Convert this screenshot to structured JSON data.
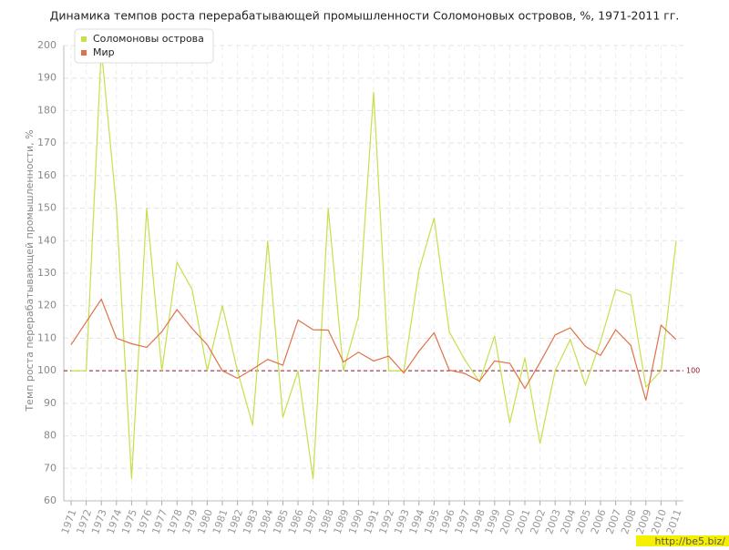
{
  "chart_data": {
    "type": "line",
    "title": "Динамика темпов роста перерабатывающей промышленности Соломоновых островов, %, 1971-2011 гг.",
    "y_label": "Темп роста перерабатывающей промышленности, %",
    "categories": [
      "1971",
      "1972",
      "1973",
      "1974",
      "1975",
      "1976",
      "1977",
      "1978",
      "1979",
      "1980",
      "1981",
      "1982",
      "1983",
      "1984",
      "1985",
      "1986",
      "1987",
      "1988",
      "1989",
      "1990",
      "1991",
      "1992",
      "1993",
      "1994",
      "1995",
      "1996",
      "1997",
      "1998",
      "1999",
      "2000",
      "2001",
      "2002",
      "2003",
      "2004",
      "2005",
      "2006",
      "2007",
      "2008",
      "2009",
      "2010",
      "2011"
    ],
    "series": [
      {
        "name": "Соломоновы острова",
        "color": "#c5e04a",
        "values": [
          100,
          100,
          199,
          150,
          66.7,
          150,
          100,
          133.3,
          125,
          100,
          120,
          100,
          83.3,
          140,
          85.7,
          100,
          66.7,
          150,
          100,
          116.7,
          185.7,
          100,
          100,
          130.8,
          147,
          112,
          103.6,
          96.6,
          110.7,
          83.9,
          104,
          77.6,
          100,
          109.6,
          95.6,
          109,
          125,
          123.3,
          95,
          100,
          140
        ]
      },
      {
        "name": "Мир",
        "color": "#e0714a",
        "values": [
          108,
          115,
          122,
          110,
          108.3,
          107.2,
          112,
          118.8,
          113,
          108,
          100,
          97.7,
          100.5,
          103.5,
          101.7,
          115.6,
          112.6,
          112.5,
          102.7,
          105.7,
          103,
          104.5,
          99.3,
          106,
          111.7,
          100.2,
          99.2,
          96.8,
          103,
          102.3,
          94.6,
          102.5,
          111,
          113.2,
          107.5,
          104.7,
          112.6,
          107.8,
          90.9,
          114,
          109.6
        ]
      }
    ],
    "reference_line": 100,
    "ylim": [
      60,
      200
    ],
    "yticks": [
      60,
      70,
      80,
      90,
      100,
      110,
      120,
      130,
      140,
      150,
      160,
      170,
      180,
      190,
      200
    ],
    "grid": true,
    "legend": "top-left",
    "watermark": "http://be5.biz/"
  }
}
